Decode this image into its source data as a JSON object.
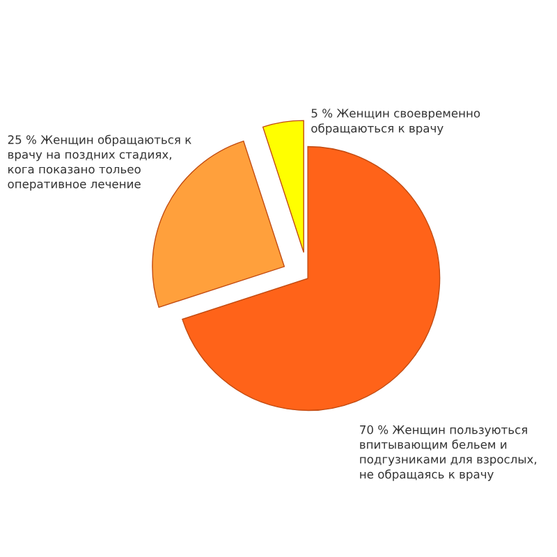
{
  "chart_data": {
    "type": "pie",
    "categories": [
      "70 % Женщин пользуються впитывающим бельем и подгузниками для взрослых, не обращаясь к врачу",
      "25 % Женщин обращаються к врачу на поздних стадиях, кога показано тольео оперативное лечение",
      "5 % Женщин своевременно обращаються к врачу"
    ],
    "values": [
      70,
      25,
      5
    ],
    "colors": [
      "#ff6319",
      "#ffa03c",
      "#ffff00"
    ],
    "legend": false
  }
}
